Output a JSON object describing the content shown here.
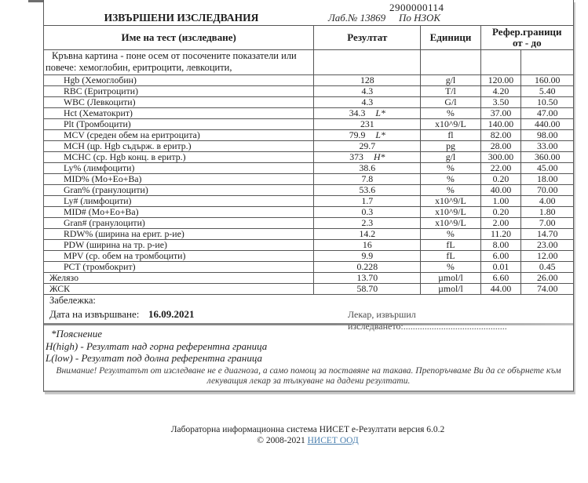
{
  "doc": {
    "claim_number": "2900000114",
    "title": "ИЗВЪРШЕНИ ИЗСЛЕДВАНИЯ",
    "lab_no": "Лаб.№ 13869",
    "funding": "По НЗОК",
    "table": {
      "headers": {
        "name": "Име на тест (изследване)",
        "result": "Резултат",
        "units": "Единици",
        "ref": "Рефер.граници",
        "ref_range": "от - до"
      },
      "group_note_line1": "Кръвна картина - поне осем от посочените показатели или",
      "group_note_line2": "повече: хемоглобин, еритроцити, левкоцити,",
      "rows": [
        {
          "name": "Hgb (Хемоглобин)",
          "indent": "test",
          "result": "128",
          "flag": "",
          "units": "g/l",
          "from": "120.00",
          "to": "160.00"
        },
        {
          "name": "RBC (Еритроцити)",
          "indent": "test",
          "result": "4.3",
          "flag": "",
          "units": "T/l",
          "from": "4.20",
          "to": "5.40"
        },
        {
          "name": "WBC (Левкоцити)",
          "indent": "test",
          "result": "4.3",
          "flag": "",
          "units": "G/l",
          "from": "3.50",
          "to": "10.50"
        },
        {
          "name": "Hct (Хематокрит)",
          "indent": "test",
          "result": "34.3",
          "flag": "L*",
          "units": "%",
          "from": "37.00",
          "to": "47.00"
        },
        {
          "name": "Plt (Тромбоцити)",
          "indent": "test",
          "result": "231",
          "flag": "",
          "units": "x10^9/L",
          "from": "140.00",
          "to": "440.00"
        },
        {
          "name": "MCV (среден обем на еритроцита)",
          "indent": "test",
          "result": "79.9",
          "flag": "L*",
          "units": "fl",
          "from": "82.00",
          "to": "98.00"
        },
        {
          "name": "MCH (цр. Hgb съдърж. в еритр.)",
          "indent": "test",
          "result": "29.7",
          "flag": "",
          "units": "pg",
          "from": "28.00",
          "to": "33.00"
        },
        {
          "name": "MCHC (ср. Hgb конц. в еритр.)",
          "indent": "test",
          "result": "373",
          "flag": "H*",
          "units": "g/l",
          "from": "300.00",
          "to": "360.00"
        },
        {
          "name": "Ly% (лимфоцити)",
          "indent": "test",
          "result": "38.6",
          "flag": "",
          "units": "%",
          "from": "22.00",
          "to": "45.00"
        },
        {
          "name": "MID% (Mo+Eo+Ba)",
          "indent": "test",
          "result": "7.8",
          "flag": "",
          "units": "%",
          "from": "0.20",
          "to": "18.00"
        },
        {
          "name": "Gran% (гранулоцити)",
          "indent": "test",
          "result": "53.6",
          "flag": "",
          "units": "%",
          "from": "40.00",
          "to": "70.00"
        },
        {
          "name": "Ly# (лимфоцити)",
          "indent": "test",
          "result": "1.7",
          "flag": "",
          "units": "x10^9/L",
          "from": "1.00",
          "to": "4.00"
        },
        {
          "name": "MID# (Mo+Eo+Ba)",
          "indent": "test",
          "result": "0.3",
          "flag": "",
          "units": "x10^9/L",
          "from": "0.20",
          "to": "1.80"
        },
        {
          "name": "Gran# (гранулоцити)",
          "indent": "test",
          "result": "2.3",
          "flag": "",
          "units": "x10^9/L",
          "from": "2.00",
          "to": "7.00"
        },
        {
          "name": "RDW% (ширина на ерит. р-ие)",
          "indent": "test",
          "result": "14.2",
          "flag": "",
          "units": "%",
          "from": "11.20",
          "to": "14.70"
        },
        {
          "name": "PDW (ширина на тр. р-ие)",
          "indent": "test",
          "result": "16",
          "flag": "",
          "units": "fL",
          "from": "8.00",
          "to": "23.00"
        },
        {
          "name": "MPV (ср. обем на тромбоцити)",
          "indent": "test",
          "result": "9.9",
          "flag": "",
          "units": "fL",
          "from": "6.00",
          "to": "12.00"
        },
        {
          "name": "PCT (тромбокрит)",
          "indent": "test",
          "result": "0.228",
          "flag": "",
          "units": "%",
          "from": "0.01",
          "to": "0.45"
        },
        {
          "name": "Желязо",
          "indent": "none",
          "result": "13.70",
          "flag": "",
          "units": "µmol/l",
          "from": "6.60",
          "to": "26.00"
        },
        {
          "name": "ЖСК",
          "indent": "none",
          "result": "58.70",
          "flag": "",
          "units": "µmol/l",
          "from": "44.00",
          "to": "74.00"
        }
      ]
    },
    "note_label": "Забележка:",
    "date_label": "Дата на извършване:",
    "date_value": "16.09.2021",
    "doctor_label": "Лекар, извършил изследването:............................................",
    "legend": {
      "title": "*Пояснение",
      "high": "H(high) - Резултат над горна референтна граница",
      "low": "L(low) - Резултат под долна референтна граница"
    },
    "warning": "Внимание! Резултатът от изследване не е диагноза, а само помощ за поставяне на такава. Препоръчваме Ви да се обърнете към лекуващия лекар за тълкуване на дадени резултати."
  },
  "footer": {
    "line1": "Лабораторна информационна система НИСЕТ е-Резултати версия 6.0.2",
    "copyright": "© 2008-2021",
    "link_label": "НИСЕТ ООД"
  },
  "colors": {
    "border": "#565656",
    "link": "#4a7fae",
    "text": "#1c1c1c"
  }
}
